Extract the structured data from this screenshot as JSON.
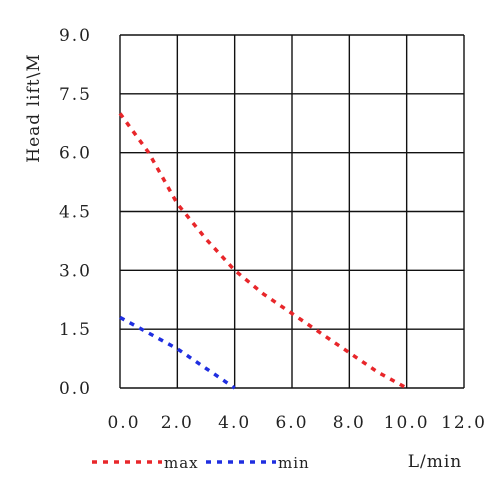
{
  "chart_data": {
    "type": "line",
    "title": "",
    "xlabel": "L/min",
    "ylabel": "Head lift\\M",
    "xlim": [
      0,
      12
    ],
    "ylim": [
      0,
      9
    ],
    "x_ticks": [
      0,
      2,
      4,
      6,
      8,
      10,
      12
    ],
    "x_tick_labels": [
      "0.0",
      "2.0",
      "4.0",
      "6.0",
      "8.0",
      "10.0",
      "12.0"
    ],
    "y_ticks": [
      0,
      1.5,
      3,
      4.5,
      6,
      7.5,
      9
    ],
    "y_tick_labels": [
      "0.0",
      "1.5",
      "3.0",
      "4.5",
      "6.0",
      "7.5",
      "9.0"
    ],
    "grid": true,
    "legend_position": "bottom-left",
    "series": [
      {
        "name": "max",
        "color": "#e8262a",
        "style": "dashed",
        "x": [
          0,
          1,
          2,
          3,
          4,
          5,
          6,
          7,
          8,
          9,
          10
        ],
        "y": [
          7.0,
          6.0,
          4.7,
          3.8,
          3.0,
          2.4,
          1.9,
          1.4,
          0.9,
          0.4,
          0.0
        ]
      },
      {
        "name": "min",
        "color": "#1f2ee0",
        "style": "dashed",
        "x": [
          0,
          1,
          2,
          3,
          4
        ],
        "y": [
          1.8,
          1.4,
          1.0,
          0.5,
          0.0
        ]
      }
    ]
  }
}
